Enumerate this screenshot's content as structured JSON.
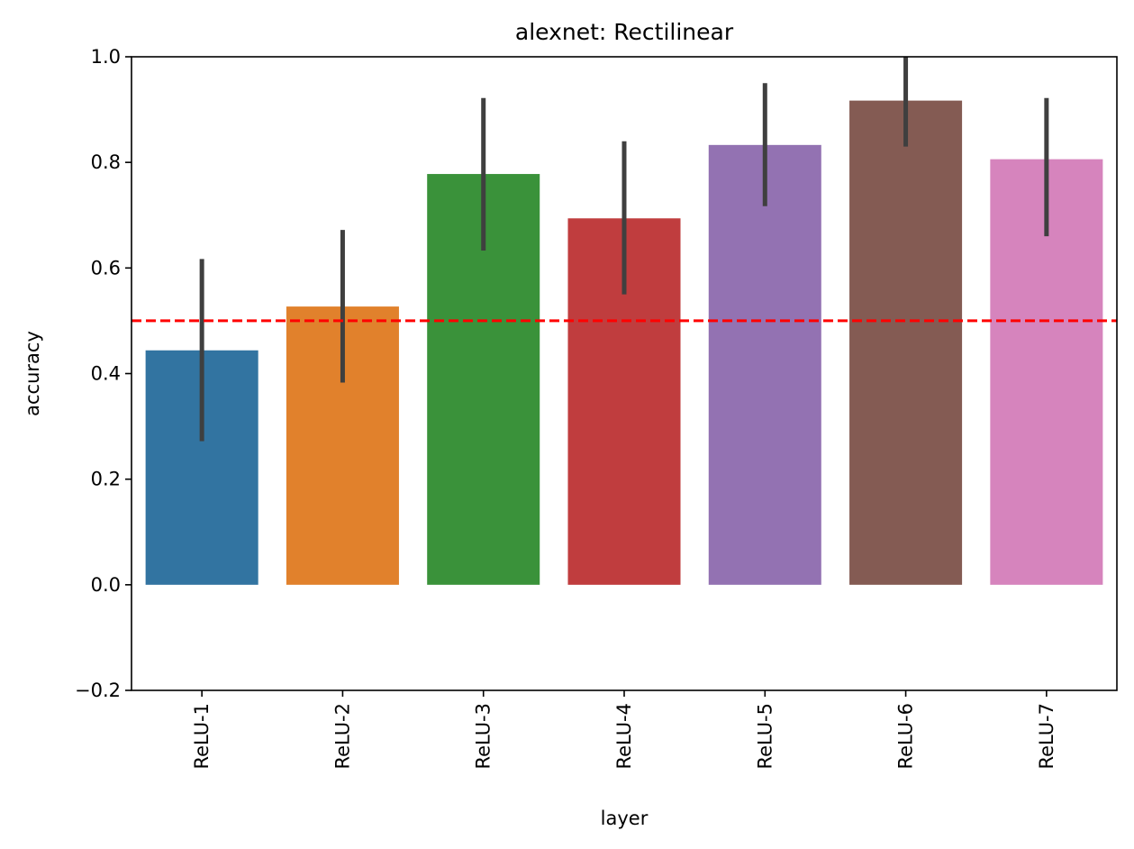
{
  "chart_data": {
    "type": "bar",
    "title": "alexnet: Rectilinear",
    "xlabel": "layer",
    "ylabel": "accuracy",
    "ylim": [
      -0.2,
      1.0
    ],
    "yticks": [
      -0.2,
      0.0,
      0.2,
      0.4,
      0.6,
      0.8,
      1.0
    ],
    "ytick_labels": [
      "−0.2",
      "0.0",
      "0.2",
      "0.4",
      "0.6",
      "0.8",
      "1.0"
    ],
    "categories": [
      "ReLU-1",
      "ReLU-2",
      "ReLU-3",
      "ReLU-4",
      "ReLU-5",
      "ReLU-6",
      "ReLU-7"
    ],
    "values": [
      0.444,
      0.527,
      0.778,
      0.694,
      0.833,
      0.917,
      0.806
    ],
    "error_low": [
      0.272,
      0.383,
      0.633,
      0.55,
      0.717,
      0.83,
      0.66
    ],
    "error_high": [
      0.617,
      0.672,
      0.922,
      0.84,
      0.95,
      1.0,
      0.922
    ],
    "colors": [
      "#3274a1",
      "#e1812c",
      "#3a923a",
      "#c03d3e",
      "#9372b2",
      "#845b53",
      "#d684bd"
    ],
    "error_color": "#3f3f3f",
    "reference_line": {
      "y": 0.5,
      "color": "#ff0000",
      "style": "dashed"
    },
    "grid": false,
    "legend": "none"
  }
}
